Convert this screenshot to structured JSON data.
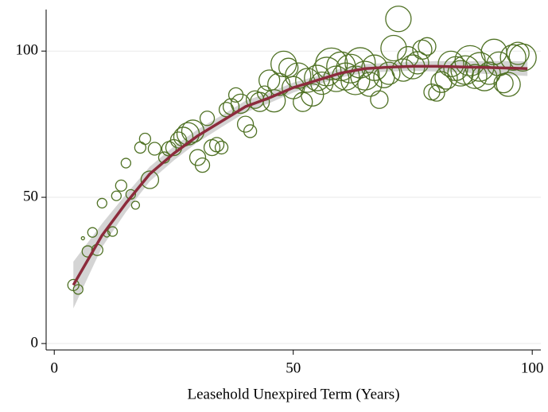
{
  "chart_data": {
    "type": "scatter",
    "xlabel": "Leasehold Unexpired Term (Years)",
    "xlim": [
      -1.7,
      101.8
    ],
    "ylim": [
      -2.2,
      114.2
    ],
    "xticks": [
      0,
      50,
      100
    ],
    "yticks": [
      0,
      50,
      100
    ],
    "grid": true,
    "points": {
      "color": "#4f7124",
      "x": [
        4,
        5,
        6,
        7,
        8,
        9,
        10,
        11,
        12.2,
        13,
        14,
        15,
        16,
        17,
        18,
        19,
        20,
        21,
        23,
        24,
        25,
        26,
        27,
        28,
        29,
        30,
        31,
        32,
        33,
        34,
        35,
        36,
        37,
        38,
        39,
        40,
        41,
        42,
        43,
        44,
        45,
        46,
        47,
        48,
        49,
        50,
        51,
        52,
        53,
        54,
        55,
        56,
        57,
        58,
        59,
        60,
        61,
        62,
        63,
        64,
        65,
        66,
        67,
        68,
        69,
        70,
        71,
        72,
        73,
        74,
        75,
        76,
        77,
        78,
        79,
        80,
        81,
        82,
        83,
        84,
        85,
        86,
        87,
        88,
        89,
        90,
        91,
        92,
        93,
        94,
        95,
        96,
        97,
        98
      ],
      "y": [
        20,
        18.5,
        36,
        31.5,
        38,
        32,
        48,
        37.5,
        38.3,
        50.5,
        54,
        61.7,
        51,
        47.3,
        67,
        70,
        56,
        66.6,
        63.6,
        66.6,
        67,
        69.6,
        70.7,
        71.7,
        72.6,
        63.6,
        61,
        77,
        67,
        68,
        67,
        80,
        81,
        85,
        82,
        75,
        72.6,
        83.4,
        82.6,
        85.6,
        90,
        83,
        88.6,
        95.6,
        94.3,
        87.5,
        91.6,
        82.6,
        90,
        85,
        90.8,
        89,
        93,
        95.6,
        90.5,
        94.8,
        91.3,
        94,
        90,
        96,
        91.6,
        88.6,
        94.3,
        83.4,
        91,
        92.4,
        101,
        111,
        93.5,
        98,
        94.6,
        96,
        100.5,
        101.6,
        86,
        85.6,
        89.4,
        90.8,
        95.6,
        94,
        92.4,
        93.5,
        96.7,
        91.3,
        94.6,
        90.8,
        92.4,
        99.7,
        95.6,
        89,
        88.6,
        97.8,
        99.2,
        97.8
      ],
      "size": [
        7,
        6,
        2,
        7,
        6,
        7,
        6,
        4,
        6,
        6,
        7,
        6,
        6,
        5,
        7,
        7,
        11,
        8,
        7,
        9,
        10,
        10,
        12,
        14,
        14,
        10,
        9,
        9,
        10,
        9,
        8,
        9,
        10,
        9,
        12,
        10,
        8,
        11,
        12,
        9,
        13,
        14,
        14,
        16,
        12,
        14,
        16,
        12,
        15,
        14,
        16,
        14,
        18,
        20,
        16,
        18,
        17,
        18,
        18,
        19,
        18,
        15,
        16,
        11,
        13,
        14,
        16,
        16,
        14,
        13,
        15,
        14,
        12,
        11,
        10,
        10,
        13,
        14,
        16,
        15,
        16,
        18,
        19,
        15,
        18,
        16,
        14,
        16,
        15,
        12,
        15,
        16,
        14,
        17
      ]
    },
    "fit": {
      "color": "#8c2b3c",
      "band_color": "#c9c9c9",
      "x": [
        4,
        10,
        15,
        20,
        25,
        30,
        35,
        40,
        45,
        50,
        55,
        60,
        65,
        70,
        75,
        80,
        85,
        90,
        95,
        99
      ],
      "y": [
        20,
        37,
        48,
        58,
        65,
        71,
        76,
        81,
        84,
        87.5,
        90,
        92.5,
        94,
        94.5,
        94.8,
        94.8,
        94.6,
        94.4,
        94.2,
        94
      ],
      "lower": [
        12,
        33,
        45,
        55.5,
        62.6,
        68.8,
        74,
        79,
        82.2,
        85.8,
        88.5,
        91,
        92.5,
        93,
        93.3,
        93,
        92.7,
        92.2,
        91.8,
        91.5
      ],
      "upper": [
        28,
        41,
        51,
        60.5,
        67.4,
        73.2,
        78,
        83,
        85.8,
        89.2,
        91.5,
        94,
        95.5,
        96,
        96.3,
        96.6,
        96.5,
        96.6,
        96.6,
        96.5
      ]
    }
  }
}
